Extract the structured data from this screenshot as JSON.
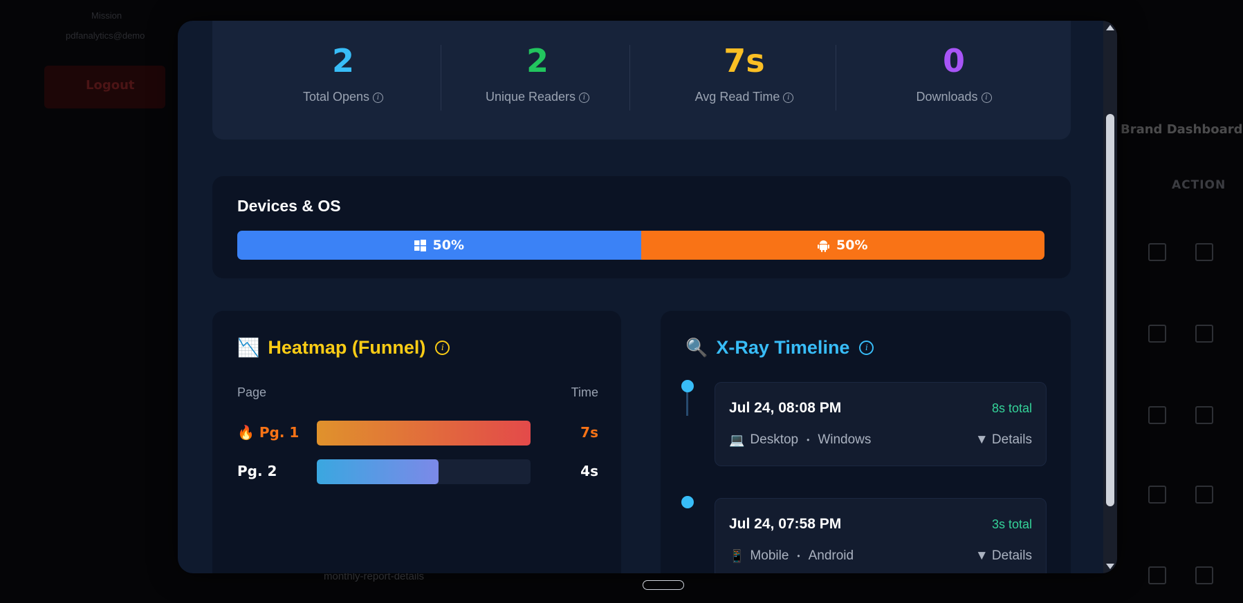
{
  "background": {
    "left_lines": [
      "Mission",
      "pdfanalytics@demo"
    ],
    "red_button": "Logout",
    "title": "Brand Dashboard",
    "action_header": "ACTION",
    "bottom_text": "monthly-report-details"
  },
  "stats": [
    {
      "value": "2",
      "label": "Total Opens",
      "color": "#38bdf8"
    },
    {
      "value": "2",
      "label": "Unique Readers",
      "color": "#22c55e"
    },
    {
      "value": "7s",
      "label": "Avg Read Time",
      "color": "#fbbf24"
    },
    {
      "value": "0",
      "label": "Downloads",
      "color": "#a855f7"
    }
  ],
  "devices": {
    "title": "Devices & OS",
    "segments": [
      {
        "icon": "windows-icon",
        "label": "50%",
        "share": 50,
        "color": "#3b82f6"
      },
      {
        "icon": "android-icon",
        "label": "50%",
        "share": 50,
        "color": "#f97316"
      }
    ]
  },
  "heatmap": {
    "emoji": "📉",
    "title": "Heatmap (Funnel)",
    "title_color": "#facc15",
    "col_page": "Page",
    "col_time": "Time",
    "rows": [
      {
        "hot_emoji": "🔥",
        "page": "Pg. 1",
        "time": "7s",
        "fill": 1.0,
        "text_color": "#f97316",
        "gradient": "linear-gradient(90deg,#e0922c,#e34a4a)"
      },
      {
        "hot_emoji": "",
        "page": "Pg. 2",
        "time": "4s",
        "fill": 0.57,
        "text_color": "#ffffff",
        "gradient": "linear-gradient(90deg,#3aa7e0,#7c89e8)"
      }
    ]
  },
  "xray": {
    "emoji": "🔍",
    "title": "X-Ray Timeline",
    "title_color": "#38bdf8",
    "events": [
      {
        "date": "Jul 24, 08:08 PM",
        "total": "8s total",
        "device_emoji": "💻",
        "device": "Desktop",
        "separator": "•",
        "os": "Windows",
        "details": "▼ Details"
      },
      {
        "date": "Jul 24, 07:58 PM",
        "total": "3s total",
        "device_emoji": "📱",
        "device": "Mobile",
        "separator": "•",
        "os": "Android",
        "details": "▼ Details"
      }
    ]
  }
}
